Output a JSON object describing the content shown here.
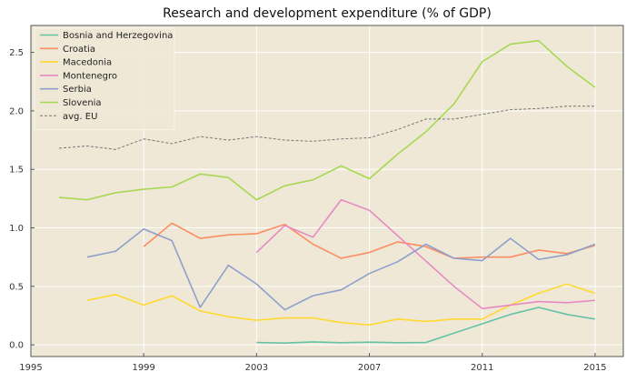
{
  "colors": {
    "background": "#ffffff",
    "plot_background": "#efe8d7",
    "grid": "#ffffff",
    "axis": "#555555"
  },
  "chart_data": {
    "type": "line",
    "title": "Research and development expenditure (% of GDP)",
    "xlabel": "",
    "ylabel": "",
    "xlim": [
      1995,
      2016
    ],
    "ylim": [
      -0.1,
      2.73
    ],
    "xticks": [
      1995,
      1999,
      2003,
      2007,
      2011,
      2015
    ],
    "xtick_labels": [
      "1995",
      "1999",
      "2003",
      "2007",
      "2011",
      "2015"
    ],
    "yticks": [
      0.0,
      0.5,
      1.0,
      1.5,
      2.0,
      2.5
    ],
    "ytick_labels": [
      "0.0",
      "0.5",
      "1.0",
      "1.5",
      "2.0",
      "2.5"
    ],
    "grid": true,
    "legend_position": "top-left",
    "series": [
      {
        "name": "Bosnia and Herzegovina",
        "color": "#66c2a5",
        "dashed": false,
        "points": [
          [
            2003,
            0.02
          ],
          [
            2004,
            0.015
          ],
          [
            2005,
            0.025
          ],
          [
            2006,
            0.018
          ],
          [
            2007,
            0.023
          ],
          [
            2008,
            0.018
          ],
          [
            2009,
            0.02
          ],
          [
            2010,
            0.1
          ],
          [
            2011,
            0.18
          ],
          [
            2012,
            0.26
          ],
          [
            2013,
            0.32
          ],
          [
            2014,
            0.26
          ],
          [
            2015,
            0.22
          ]
        ]
      },
      {
        "name": "Croatia",
        "color": "#fc8d62",
        "dashed": false,
        "points": [
          [
            1999,
            0.84
          ],
          [
            2000,
            1.04
          ],
          [
            2001,
            0.91
          ],
          [
            2002,
            0.94
          ],
          [
            2003,
            0.95
          ],
          [
            2004,
            1.03
          ],
          [
            2005,
            0.86
          ],
          [
            2006,
            0.74
          ],
          [
            2007,
            0.79
          ],
          [
            2008,
            0.88
          ],
          [
            2009,
            0.84
          ],
          [
            2010,
            0.74
          ],
          [
            2011,
            0.75
          ],
          [
            2012,
            0.75
          ],
          [
            2013,
            0.81
          ],
          [
            2014,
            0.78
          ],
          [
            2015,
            0.85
          ]
        ]
      },
      {
        "name": "Macedonia",
        "color": "#ffd92f",
        "dashed": false,
        "points": [
          [
            1997,
            0.38
          ],
          [
            1998,
            0.43
          ],
          [
            1999,
            0.34
          ],
          [
            2000,
            0.42
          ],
          [
            2001,
            0.29
          ],
          [
            2002,
            0.24
          ],
          [
            2003,
            0.21
          ],
          [
            2004,
            0.23
          ],
          [
            2005,
            0.23
          ],
          [
            2006,
            0.19
          ],
          [
            2007,
            0.17
          ],
          [
            2008,
            0.22
          ],
          [
            2009,
            0.2
          ],
          [
            2010,
            0.22
          ],
          [
            2011,
            0.22
          ],
          [
            2012,
            0.34
          ],
          [
            2013,
            0.44
          ],
          [
            2014,
            0.52
          ],
          [
            2015,
            0.44
          ]
        ]
      },
      {
        "name": "Montenegro",
        "color": "#e78ac3",
        "dashed": false,
        "points": [
          [
            2003,
            0.79
          ],
          [
            2004,
            1.02
          ],
          [
            2005,
            0.92
          ],
          [
            2006,
            1.24
          ],
          [
            2007,
            1.15
          ],
          [
            2010,
            0.5
          ],
          [
            2011,
            0.31
          ],
          [
            2012,
            0.34
          ],
          [
            2013,
            0.37
          ],
          [
            2014,
            0.36
          ],
          [
            2015,
            0.38
          ]
        ]
      },
      {
        "name": "Serbia",
        "color": "#8da0cb",
        "dashed": false,
        "points": [
          [
            1997,
            0.75
          ],
          [
            1998,
            0.8
          ],
          [
            1999,
            0.99
          ],
          [
            2000,
            0.89
          ],
          [
            2001,
            0.32
          ],
          [
            2002,
            0.68
          ],
          [
            2003,
            0.52
          ],
          [
            2004,
            0.3
          ],
          [
            2005,
            0.42
          ],
          [
            2006,
            0.47
          ],
          [
            2007,
            0.61
          ],
          [
            2008,
            0.71
          ],
          [
            2009,
            0.86
          ],
          [
            2010,
            0.74
          ],
          [
            2011,
            0.72
          ],
          [
            2012,
            0.91
          ],
          [
            2013,
            0.73
          ],
          [
            2014,
            0.77
          ],
          [
            2015,
            0.86
          ]
        ]
      },
      {
        "name": "Slovenia",
        "color": "#a6d854",
        "dashed": false,
        "points": [
          [
            1996,
            1.26
          ],
          [
            1997,
            1.24
          ],
          [
            1998,
            1.3
          ],
          [
            1999,
            1.33
          ],
          [
            2000,
            1.35
          ],
          [
            2001,
            1.46
          ],
          [
            2002,
            1.43
          ],
          [
            2003,
            1.24
          ],
          [
            2004,
            1.36
          ],
          [
            2005,
            1.41
          ],
          [
            2006,
            1.53
          ],
          [
            2007,
            1.42
          ],
          [
            2008,
            1.63
          ],
          [
            2009,
            1.82
          ],
          [
            2010,
            2.06
          ],
          [
            2011,
            2.42
          ],
          [
            2012,
            2.57
          ],
          [
            2013,
            2.6
          ],
          [
            2014,
            2.38
          ],
          [
            2015,
            2.2
          ]
        ]
      },
      {
        "name": "avg. EU",
        "color": "#777777",
        "dashed": true,
        "points": [
          [
            1996,
            1.68
          ],
          [
            1997,
            1.7
          ],
          [
            1998,
            1.67
          ],
          [
            1999,
            1.76
          ],
          [
            2000,
            1.72
          ],
          [
            2001,
            1.78
          ],
          [
            2002,
            1.75
          ],
          [
            2003,
            1.78
          ],
          [
            2004,
            1.75
          ],
          [
            2005,
            1.74
          ],
          [
            2006,
            1.76
          ],
          [
            2007,
            1.77
          ],
          [
            2008,
            1.84
          ],
          [
            2009,
            1.93
          ],
          [
            2010,
            1.93
          ],
          [
            2011,
            1.97
          ],
          [
            2012,
            2.01
          ],
          [
            2013,
            2.02
          ],
          [
            2014,
            2.04
          ],
          [
            2015,
            2.04
          ]
        ]
      }
    ]
  }
}
